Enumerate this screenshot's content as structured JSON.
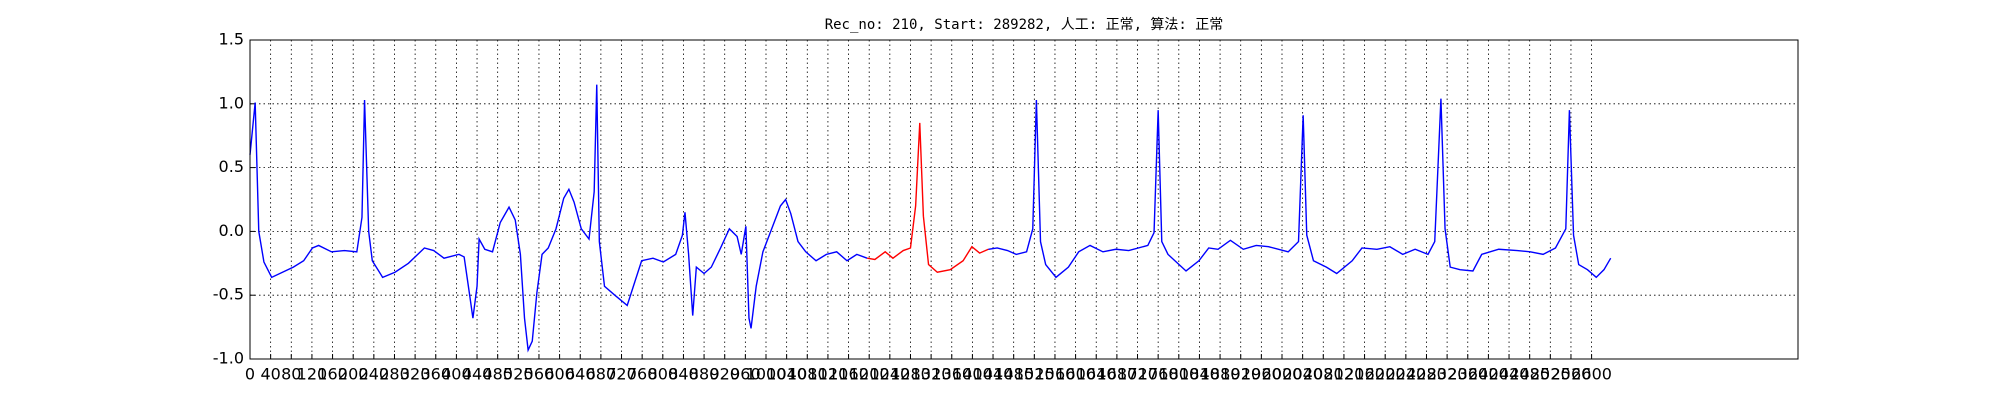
{
  "chart_data": {
    "type": "line",
    "title": "Rec_no: 210, Start: 289282, 人工: 正常, 算法: 正常",
    "xlim": [
      0,
      3000
    ],
    "ylim": [
      -1.0,
      1.5
    ],
    "xticks": [
      0,
      40,
      80,
      120,
      160,
      200,
      240,
      280,
      320,
      360,
      400,
      440,
      480,
      520,
      560,
      600,
      640,
      680,
      720,
      760,
      800,
      840,
      880,
      920,
      960,
      1000,
      1040,
      1080,
      1120,
      1160,
      1200,
      1240,
      1280,
      1320,
      1360,
      1400,
      1440,
      1480,
      1520,
      1560,
      1600,
      1640,
      1680,
      1720,
      1760,
      1800,
      1840,
      1880,
      1920,
      1960,
      2000,
      2040,
      2080,
      2120,
      2160,
      2200,
      2240,
      2280,
      2320,
      2360,
      2400,
      2440,
      2480,
      2520,
      2560,
      2600
    ],
    "yticks": [
      {
        "value": -1.0,
        "label": "-1.0"
      },
      -0.5,
      {
        "value": 0.0,
        "label": "0.0"
      },
      0.5,
      {
        "value": 1.0,
        "label": "1.0"
      },
      1.5
    ],
    "grid": true,
    "series": [
      {
        "color": "#0000ff",
        "x": [
          0,
          10,
          17,
          27,
          42,
          84,
          104,
          121,
          133,
          158,
          183,
          207,
          217,
          222,
          230,
          237,
          257,
          281,
          307,
          338,
          356,
          376,
          405,
          415,
          425,
          432,
          440,
          444,
          455,
          470,
          485,
          502,
          514,
          524,
          532,
          539,
          547,
          556,
          566,
          578,
          593,
          608,
          618,
          628,
          642,
          657,
          667,
          672,
          677,
          687,
          707,
          731,
          743,
          759,
          781,
          801,
          825,
          838,
          843,
          850,
          858,
          865,
          880,
          894,
          912,
          929,
          944,
          952,
          961,
          967,
          971,
          981,
          994,
          1011,
          1028,
          1038,
          1048,
          1062,
          1077,
          1097,
          1117,
          1137,
          1157,
          1176,
          1196
        ],
        "values": [
          0.6,
          1.01,
          0.0,
          -0.24,
          -0.36,
          -0.28,
          -0.23,
          -0.13,
          -0.11,
          -0.16,
          -0.15,
          -0.16,
          0.11,
          1.03,
          0.0,
          -0.23,
          -0.36,
          -0.32,
          -0.25,
          -0.13,
          -0.15,
          -0.21,
          -0.18,
          -0.2,
          -0.48,
          -0.68,
          -0.43,
          -0.06,
          -0.14,
          -0.16,
          0.07,
          0.19,
          0.09,
          -0.18,
          -0.68,
          -0.93,
          -0.86,
          -0.48,
          -0.18,
          -0.13,
          0.02,
          0.26,
          0.33,
          0.23,
          0.02,
          -0.06,
          0.31,
          1.15,
          -0.08,
          -0.43,
          -0.5,
          -0.58,
          -0.43,
          -0.23,
          -0.21,
          -0.24,
          -0.18,
          -0.03,
          0.15,
          -0.18,
          -0.66,
          -0.28,
          -0.33,
          -0.28,
          -0.13,
          0.02,
          -0.04,
          -0.18,
          0.04,
          -0.68,
          -0.76,
          -0.43,
          -0.16,
          0.02,
          0.2,
          0.25,
          0.14,
          -0.08,
          -0.16,
          -0.23,
          -0.18,
          -0.16,
          -0.23,
          -0.18,
          -0.21
        ]
      },
      {
        "color": "#ff0000",
        "x": [
          1196,
          1211,
          1231,
          1246,
          1266,
          1280,
          1290,
          1298,
          1305,
          1315,
          1332,
          1357,
          1382,
          1399,
          1414,
          1431
        ],
        "values": [
          -0.21,
          -0.22,
          -0.16,
          -0.21,
          -0.15,
          -0.13,
          0.2,
          0.85,
          0.12,
          -0.26,
          -0.32,
          -0.3,
          -0.23,
          -0.12,
          -0.17,
          -0.14
        ]
      },
      {
        "color": "#0000ff",
        "x": [
          1431,
          1448,
          1468,
          1485,
          1505,
          1517,
          1524,
          1532,
          1542,
          1562,
          1586,
          1606,
          1628,
          1653,
          1678,
          1703,
          1740,
          1752,
          1760,
          1767,
          1779,
          1814,
          1839,
          1858,
          1876,
          1900,
          1925,
          1950,
          1974,
          2012,
          2032,
          2041,
          2048,
          2061,
          2086,
          2106,
          2136,
          2155,
          2184,
          2209,
          2234,
          2258,
          2283,
          2296,
          2308,
          2316,
          2326,
          2345,
          2370,
          2387,
          2420,
          2456,
          2481,
          2506,
          2530,
          2550,
          2557,
          2565,
          2575,
          2592,
          2609,
          2624,
          2637
        ],
        "values": [
          -0.14,
          -0.13,
          -0.15,
          -0.18,
          -0.16,
          0.02,
          1.03,
          -0.08,
          -0.26,
          -0.36,
          -0.28,
          -0.16,
          -0.11,
          -0.16,
          -0.14,
          -0.15,
          -0.11,
          -0.01,
          0.95,
          -0.08,
          -0.18,
          -0.31,
          -0.23,
          -0.13,
          -0.14,
          -0.07,
          -0.14,
          -0.11,
          -0.12,
          -0.16,
          -0.08,
          0.91,
          -0.03,
          -0.23,
          -0.28,
          -0.33,
          -0.23,
          -0.13,
          -0.14,
          -0.12,
          -0.18,
          -0.14,
          -0.18,
          -0.08,
          1.04,
          0.02,
          -0.28,
          -0.3,
          -0.31,
          -0.18,
          -0.14,
          -0.15,
          -0.16,
          -0.18,
          -0.13,
          0.02,
          0.95,
          -0.03,
          -0.26,
          -0.3,
          -0.36,
          -0.3,
          -0.21
        ]
      }
    ]
  }
}
